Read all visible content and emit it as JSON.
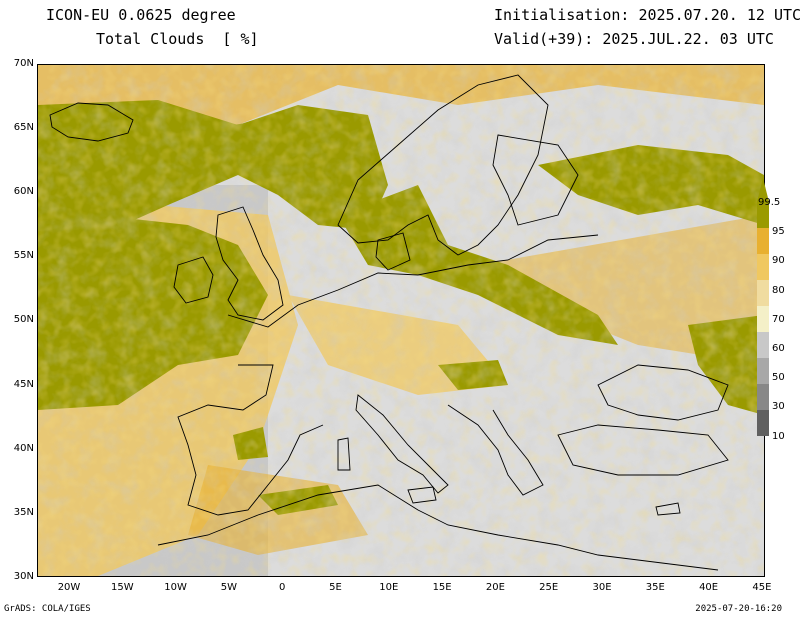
{
  "header": {
    "model": "ICON-EU 0.0625 degree",
    "variable": "Total Clouds  [ %]",
    "init": "Initialisation: 2025.07.20. 12 UTC",
    "valid": "Valid(+39): 2025.JUL.22. 03 UTC"
  },
  "axes": {
    "lat_labels": [
      "70N",
      "65N",
      "60N",
      "55N",
      "50N",
      "45N",
      "40N",
      "35N",
      "30N"
    ],
    "lon_labels": [
      "20W",
      "15W",
      "10W",
      "5W",
      "0",
      "5E",
      "10E",
      "15E",
      "20E",
      "25E",
      "30E",
      "35E",
      "40E",
      "45E"
    ]
  },
  "legend": {
    "labels": [
      "99.5",
      "95",
      "90",
      "80",
      "70",
      "60",
      "50",
      "30",
      "10"
    ],
    "colors": [
      "#9a9a00",
      "#e8b030",
      "#f0c860",
      "#f0dca0",
      "#f4f0c8",
      "#c8c8c8",
      "#a8a8a8",
      "#888888",
      "#606060"
    ]
  },
  "map_colors": {
    "sea_clear": "#dcdcdc",
    "overcast": "#9a9a00",
    "coast": "#000000"
  },
  "footer": {
    "left": "GrADS: COLA/IGES",
    "right": "2025-07-20-16:20"
  }
}
